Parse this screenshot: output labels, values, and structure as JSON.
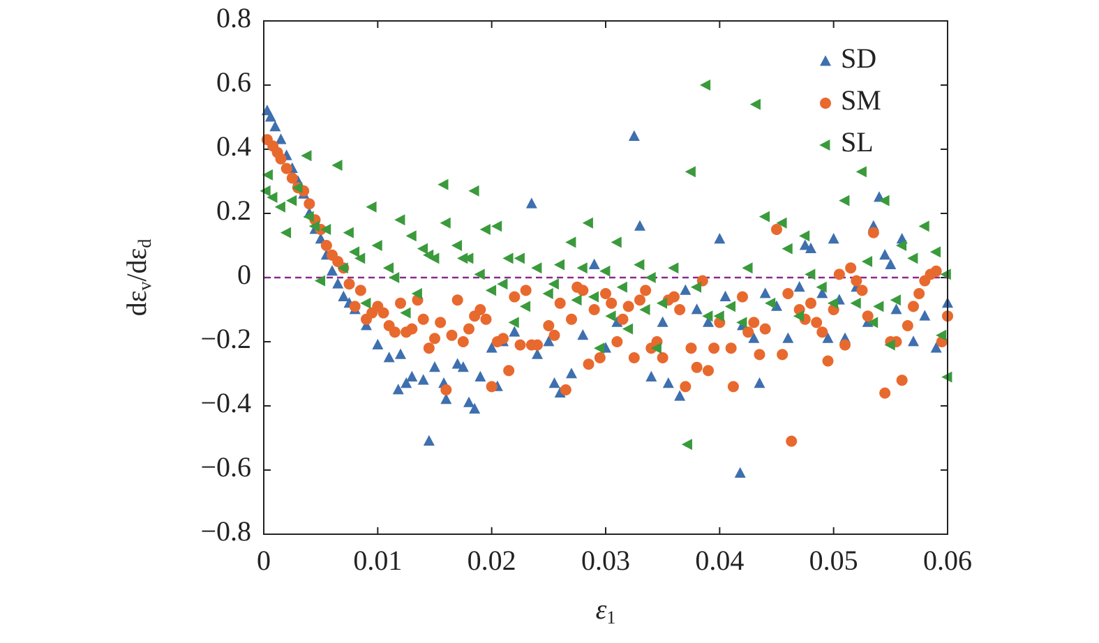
{
  "chart_data": {
    "type": "scatter",
    "x_label": [
      "ε",
      "1"
    ],
    "y_label": [
      "dε",
      "v",
      "/dε",
      "d"
    ],
    "xlim": [
      0,
      0.06
    ],
    "xticks": [
      0,
      0.01,
      0.02,
      0.03,
      0.04,
      0.05,
      0.06
    ],
    "ylim": [
      -0.8,
      0.8
    ],
    "yticks": [
      {
        "value": -0.8,
        "label": "−0.8"
      },
      {
        "value": -0.6,
        "label": "−0.6"
      },
      {
        "value": -0.4,
        "label": "−0.4"
      },
      {
        "value": -0.2,
        "label": "−0.2"
      },
      0,
      0.2,
      0.4,
      0.6,
      0.8
    ],
    "hline": {
      "y": 0,
      "color": "#8b2a8e",
      "style": "dashed"
    },
    "legend": "upper right",
    "series": [
      {
        "name": "SD",
        "color": "#3e6fae",
        "marker": "triangle-up",
        "x": [
          0.0003,
          0.0006,
          0.001,
          0.0015,
          0.002,
          0.0025,
          0.003,
          0.0035,
          0.004,
          0.0045,
          0.005,
          0.0055,
          0.006,
          0.0065,
          0.007,
          0.0075,
          0.008,
          0.009,
          0.01,
          0.011,
          0.012,
          0.0118,
          0.0125,
          0.013,
          0.014,
          0.0145,
          0.015,
          0.0158,
          0.016,
          0.017,
          0.0175,
          0.018,
          0.0185,
          0.019,
          0.02,
          0.0205,
          0.021,
          0.022,
          0.0235,
          0.024,
          0.025,
          0.0255,
          0.026,
          0.027,
          0.028,
          0.029,
          0.03,
          0.031,
          0.0325,
          0.033,
          0.034,
          0.035,
          0.0355,
          0.0365,
          0.037,
          0.038,
          0.039,
          0.04,
          0.0405,
          0.0418,
          0.042,
          0.043,
          0.0435,
          0.044,
          0.045,
          0.046,
          0.047,
          0.0475,
          0.048,
          0.049,
          0.0495,
          0.05,
          0.0505,
          0.051,
          0.052,
          0.053,
          0.0535,
          0.054,
          0.0545,
          0.055,
          0.0555,
          0.056,
          0.057,
          0.058,
          0.059,
          0.06
        ],
        "values": [
          0.52,
          0.5,
          0.47,
          0.43,
          0.38,
          0.34,
          0.3,
          0.26,
          0.2,
          0.15,
          0.12,
          0.07,
          0.02,
          -0.02,
          -0.06,
          -0.08,
          -0.1,
          -0.15,
          -0.21,
          -0.25,
          -0.24,
          -0.35,
          -0.33,
          -0.31,
          -0.32,
          -0.51,
          -0.28,
          -0.33,
          -0.38,
          -0.27,
          -0.28,
          -0.39,
          -0.41,
          -0.31,
          -0.22,
          -0.34,
          -0.2,
          -0.17,
          0.23,
          -0.24,
          -0.2,
          -0.33,
          -0.36,
          -0.3,
          -0.18,
          0.04,
          -0.22,
          -0.14,
          0.44,
          0.16,
          -0.31,
          -0.14,
          -0.33,
          -0.37,
          -0.04,
          -0.1,
          -0.14,
          0.12,
          -0.06,
          -0.61,
          -0.15,
          -0.19,
          -0.33,
          -0.05,
          -0.09,
          -0.19,
          -0.03,
          0.1,
          0.09,
          -0.05,
          -0.19,
          0.12,
          -0.07,
          -0.19,
          -0.03,
          -0.14,
          0.16,
          0.25,
          0.07,
          0.04,
          -0.1,
          0.12,
          -0.2,
          -0.12,
          -0.22,
          -0.08
        ]
      },
      {
        "name": "SM",
        "color": "#e8692e",
        "marker": "circle",
        "x": [
          0.0003,
          0.0008,
          0.0012,
          0.0015,
          0.002,
          0.0025,
          0.003,
          0.0035,
          0.004,
          0.0045,
          0.005,
          0.0055,
          0.006,
          0.0065,
          0.007,
          0.0075,
          0.008,
          0.0085,
          0.009,
          0.0095,
          0.01,
          0.0105,
          0.011,
          0.0115,
          0.012,
          0.0125,
          0.013,
          0.0135,
          0.014,
          0.0145,
          0.015,
          0.0155,
          0.016,
          0.0165,
          0.017,
          0.0175,
          0.018,
          0.0185,
          0.019,
          0.0195,
          0.02,
          0.0205,
          0.021,
          0.0215,
          0.022,
          0.0225,
          0.023,
          0.0235,
          0.024,
          0.025,
          0.0255,
          0.026,
          0.0265,
          0.027,
          0.0275,
          0.028,
          0.0285,
          0.029,
          0.0295,
          0.03,
          0.0305,
          0.031,
          0.0315,
          0.032,
          0.0325,
          0.033,
          0.0335,
          0.034,
          0.0345,
          0.035,
          0.0355,
          0.036,
          0.0365,
          0.037,
          0.0375,
          0.038,
          0.0385,
          0.039,
          0.0395,
          0.04,
          0.041,
          0.0412,
          0.042,
          0.0425,
          0.043,
          0.0435,
          0.044,
          0.045,
          0.0455,
          0.046,
          0.0463,
          0.047,
          0.0475,
          0.048,
          0.0485,
          0.049,
          0.0495,
          0.05,
          0.0505,
          0.051,
          0.0515,
          0.052,
          0.0525,
          0.053,
          0.0535,
          0.0545,
          0.055,
          0.0555,
          0.056,
          0.0565,
          0.057,
          0.0575,
          0.058,
          0.0585,
          0.059,
          0.0595,
          0.06
        ],
        "values": [
          0.43,
          0.41,
          0.39,
          0.37,
          0.34,
          0.31,
          0.28,
          0.27,
          0.23,
          0.18,
          0.15,
          0.1,
          0.07,
          0.05,
          0.03,
          -0.02,
          -0.09,
          -0.04,
          -0.13,
          -0.11,
          -0.09,
          -0.11,
          -0.15,
          -0.17,
          -0.08,
          -0.17,
          -0.16,
          -0.07,
          -0.13,
          -0.22,
          -0.19,
          -0.14,
          -0.35,
          -0.18,
          -0.07,
          -0.2,
          -0.16,
          -0.12,
          -0.1,
          -0.13,
          -0.34,
          -0.2,
          -0.19,
          -0.29,
          -0.06,
          -0.21,
          -0.04,
          -0.21,
          -0.21,
          -0.15,
          -0.18,
          -0.08,
          -0.35,
          -0.13,
          -0.03,
          -0.04,
          -0.27,
          -0.1,
          -0.25,
          -0.05,
          -0.08,
          -0.2,
          -0.13,
          -0.09,
          -0.25,
          -0.07,
          -0.04,
          -0.22,
          -0.2,
          -0.25,
          -0.07,
          -0.06,
          -0.1,
          -0.34,
          -0.22,
          -0.28,
          -0.01,
          -0.29,
          -0.22,
          -0.14,
          -0.22,
          -0.34,
          -0.06,
          -0.17,
          -0.14,
          -0.24,
          -0.16,
          0.15,
          -0.24,
          -0.05,
          -0.51,
          -0.1,
          -0.13,
          -0.08,
          -0.14,
          -0.17,
          -0.26,
          -0.1,
          0.01,
          -0.21,
          0.03,
          -0.01,
          -0.04,
          -0.12,
          0.14,
          -0.36,
          -0.2,
          -0.2,
          -0.32,
          -0.15,
          -0.09,
          -0.05,
          -0.01,
          0.01,
          0.02,
          -0.2,
          -0.12
        ]
      },
      {
        "name": "SL",
        "color": "#3a9a3c",
        "marker": "triangle-left",
        "x": [
          0.0002,
          0.0004,
          0.0008,
          0.0015,
          0.002,
          0.0025,
          0.003,
          0.0038,
          0.004,
          0.0045,
          0.005,
          0.0055,
          0.0065,
          0.007,
          0.0075,
          0.008,
          0.0085,
          0.009,
          0.0095,
          0.01,
          0.011,
          0.0115,
          0.012,
          0.0125,
          0.013,
          0.0135,
          0.014,
          0.0145,
          0.015,
          0.0158,
          0.016,
          0.017,
          0.0175,
          0.018,
          0.0185,
          0.019,
          0.0195,
          0.02,
          0.0205,
          0.021,
          0.0215,
          0.022,
          0.0225,
          0.023,
          0.024,
          0.025,
          0.0255,
          0.026,
          0.027,
          0.0275,
          0.028,
          0.0285,
          0.029,
          0.0295,
          0.03,
          0.0305,
          0.031,
          0.0315,
          0.032,
          0.033,
          0.0335,
          0.034,
          0.0345,
          0.035,
          0.036,
          0.0372,
          0.0375,
          0.038,
          0.0388,
          0.039,
          0.04,
          0.041,
          0.042,
          0.0425,
          0.0432,
          0.044,
          0.0445,
          0.0455,
          0.046,
          0.047,
          0.0475,
          0.048,
          0.049,
          0.05,
          0.051,
          0.052,
          0.0525,
          0.053,
          0.0535,
          0.054,
          0.0545,
          0.055,
          0.0555,
          0.056,
          0.057,
          0.058,
          0.059,
          0.0595,
          0.06,
          0.0599
        ],
        "values": [
          0.27,
          0.32,
          0.25,
          0.22,
          0.14,
          0.24,
          0.28,
          0.38,
          0.19,
          0.16,
          -0.01,
          0.15,
          0.35,
          0.03,
          0.14,
          0.08,
          0.06,
          -0.08,
          0.22,
          0.1,
          0.03,
          0.0,
          0.18,
          -0.11,
          0.13,
          -0.05,
          0.09,
          0.07,
          0.06,
          0.29,
          0.17,
          0.1,
          0.06,
          0.06,
          0.27,
          0.01,
          0.15,
          -0.04,
          0.16,
          -0.02,
          0.06,
          -0.14,
          0.06,
          -0.09,
          0.03,
          -0.05,
          -0.02,
          0.04,
          0.11,
          -0.07,
          0.03,
          0.17,
          -0.06,
          -0.22,
          0.02,
          -0.12,
          0.11,
          -0.03,
          -0.16,
          0.04,
          -0.1,
          0.0,
          -0.22,
          -0.08,
          0.03,
          -0.52,
          0.33,
          -0.03,
          0.6,
          -0.12,
          -0.12,
          -0.09,
          -0.14,
          0.03,
          0.54,
          0.19,
          -0.08,
          0.17,
          0.09,
          -0.12,
          0.13,
          0.01,
          -0.03,
          -0.08,
          0.24,
          -0.08,
          0.33,
          0.05,
          -0.14,
          -0.09,
          0.24,
          -0.21,
          -0.07,
          0.1,
          0.06,
          0.16,
          0.08,
          -0.18,
          -0.31,
          0.01
        ]
      }
    ]
  }
}
